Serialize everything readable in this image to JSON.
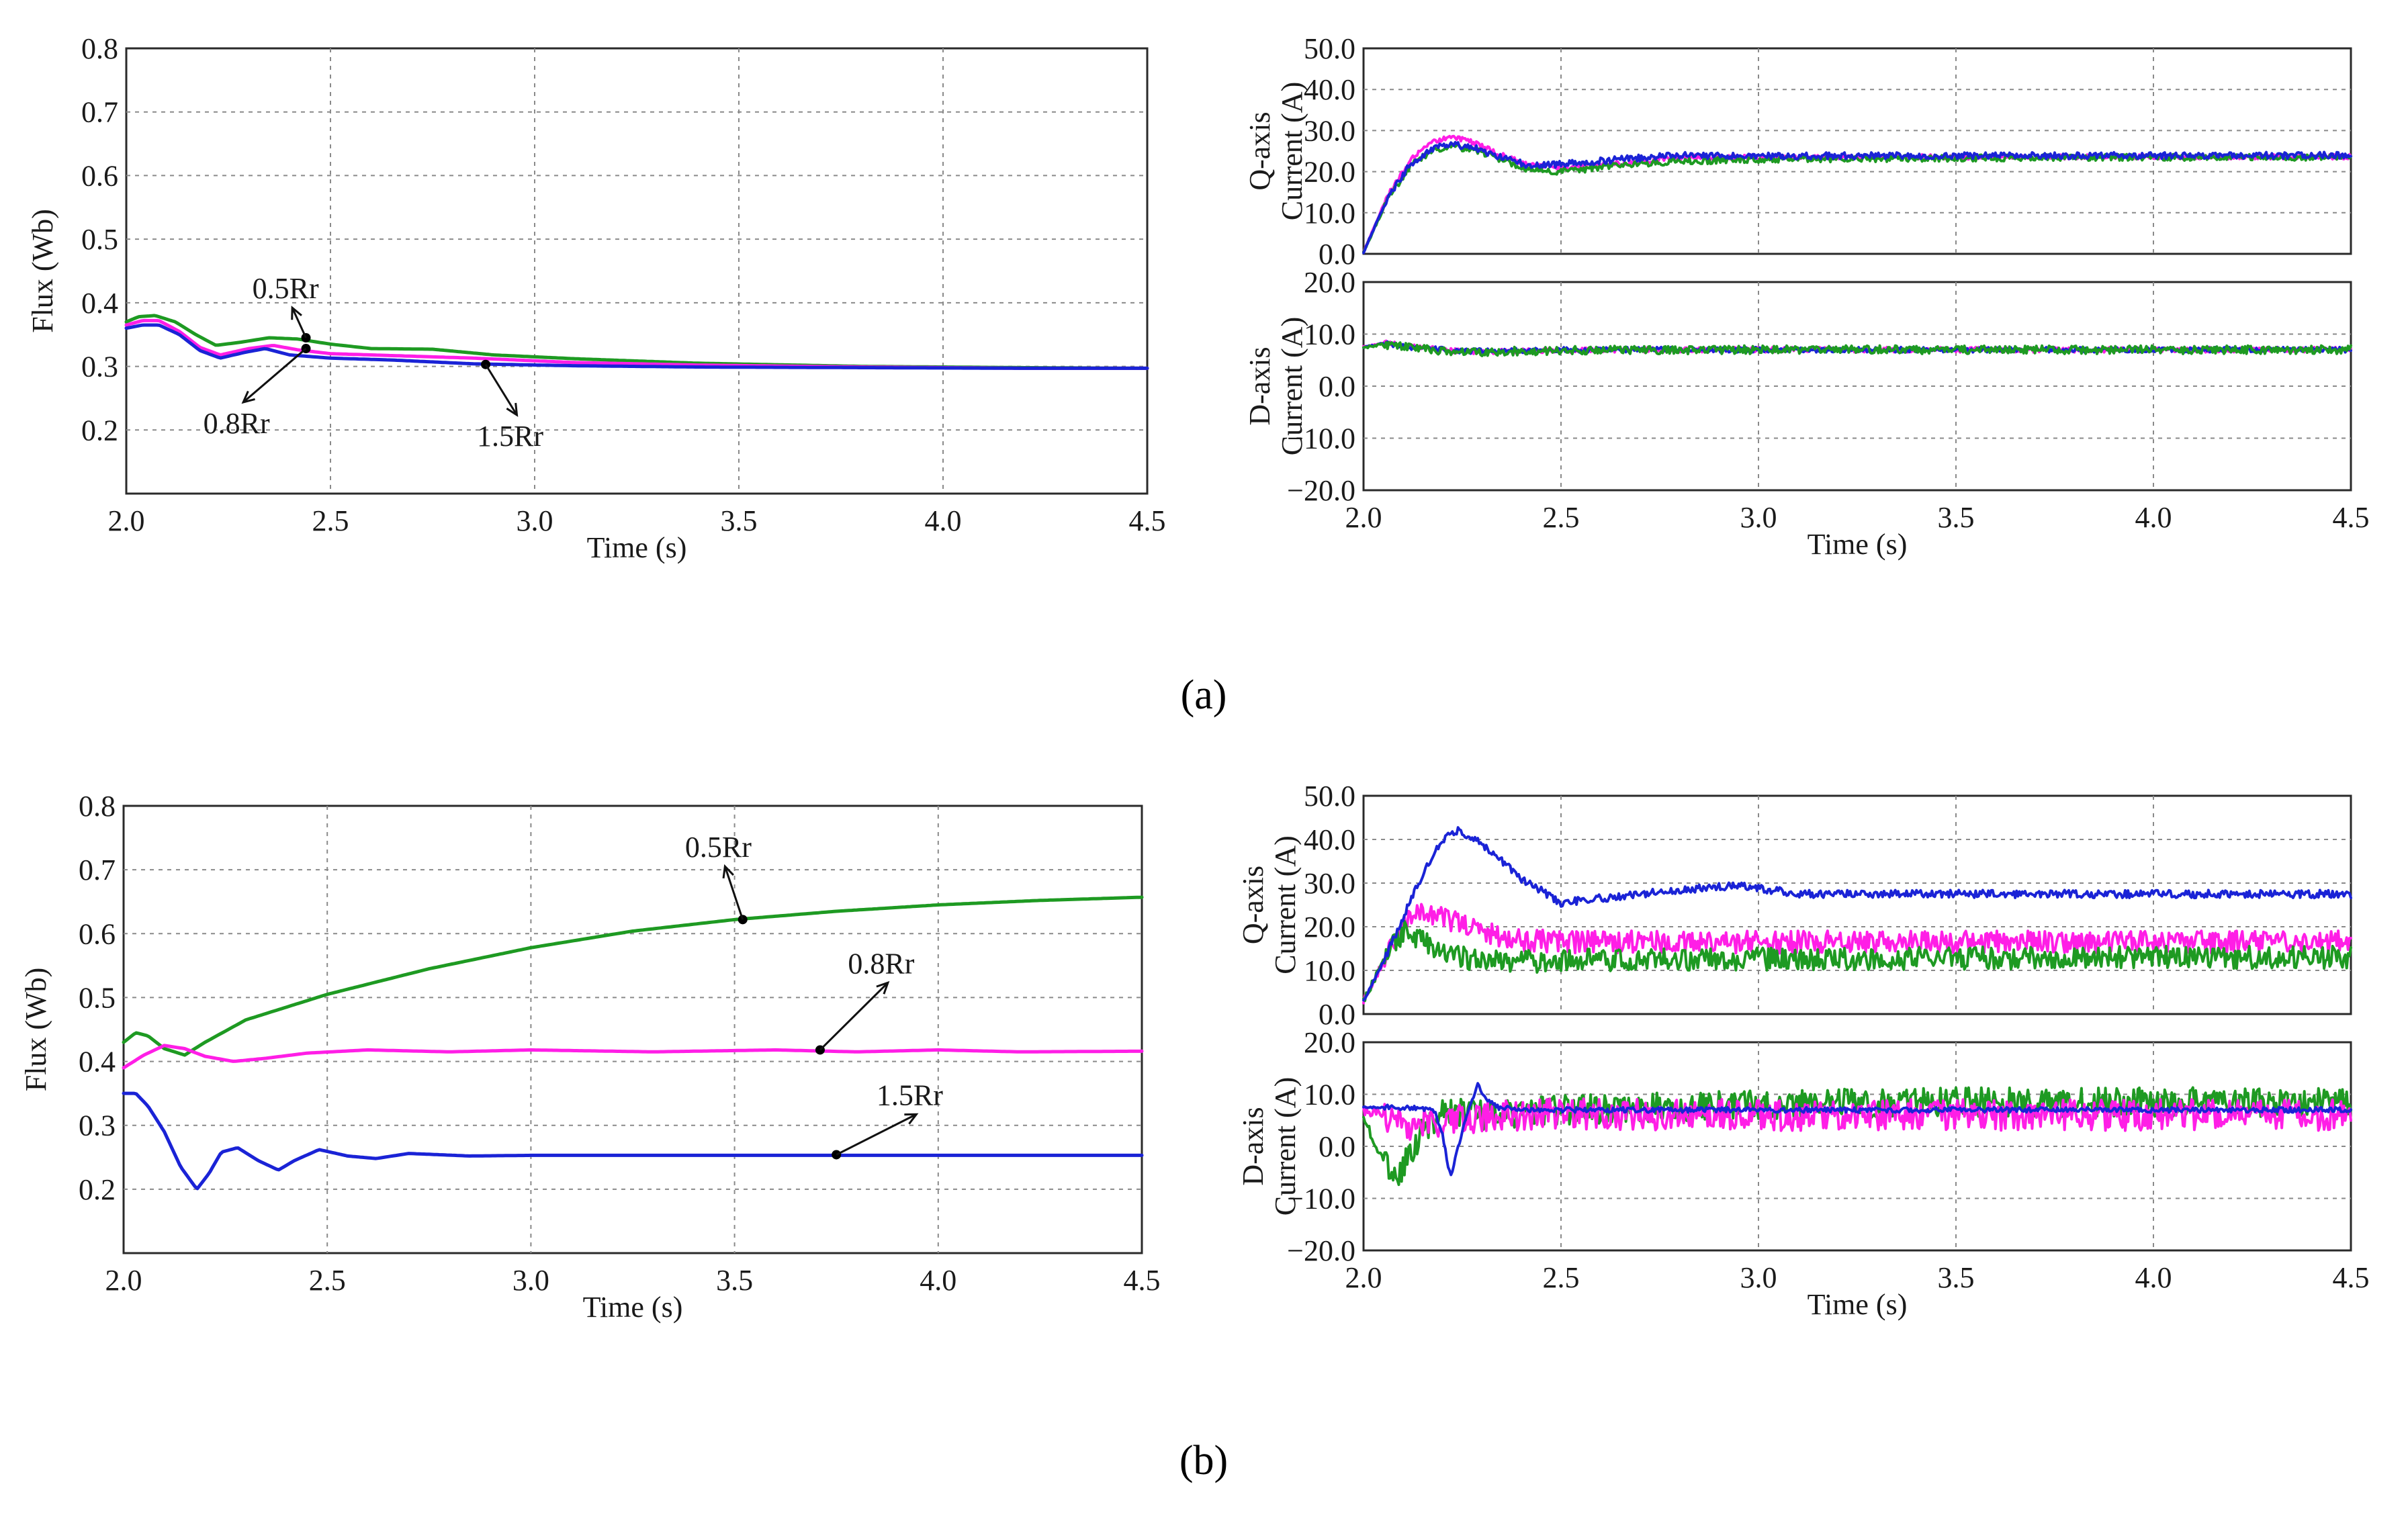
{
  "captions": {
    "a": "(a)",
    "b": "(b)"
  },
  "colors": {
    "green": "#1e9a22",
    "magenta": "#ff1ee6",
    "blue": "#1a23d6"
  },
  "chart_data": [
    {
      "id": "a_flux",
      "type": "line",
      "panel": "(a)",
      "xlabel": "Time (s)",
      "ylabel": "Flux (Wb)",
      "xlim": [
        2.0,
        4.5
      ],
      "ylim": [
        0.1,
        0.8
      ],
      "xticks": [
        "2.0",
        "2.5",
        "3.0",
        "3.5",
        "4.0",
        "4.5"
      ],
      "yticks": [
        "0.2",
        "0.3",
        "0.4",
        "0.5",
        "0.6",
        "0.7",
        "0.8"
      ],
      "grid": true,
      "series": [
        {
          "name": "0.5Rr",
          "color": "green",
          "x": [
            2.0,
            2.03,
            2.07,
            2.12,
            2.17,
            2.22,
            2.28,
            2.35,
            2.42,
            2.5,
            2.6,
            2.75,
            2.9,
            3.1,
            3.4,
            3.8,
            4.2,
            4.5
          ],
          "y": [
            0.37,
            0.378,
            0.38,
            0.37,
            0.35,
            0.333,
            0.338,
            0.345,
            0.343,
            0.335,
            0.328,
            0.327,
            0.318,
            0.312,
            0.305,
            0.3,
            0.298,
            0.297
          ]
        },
        {
          "name": "0.8Rr",
          "color": "magenta",
          "x": [
            2.0,
            2.04,
            2.08,
            2.13,
            2.18,
            2.23,
            2.3,
            2.36,
            2.42,
            2.5,
            2.65,
            2.85,
            3.1,
            3.4,
            3.8,
            4.2,
            4.5
          ],
          "y": [
            0.365,
            0.372,
            0.372,
            0.355,
            0.33,
            0.318,
            0.328,
            0.333,
            0.326,
            0.32,
            0.317,
            0.313,
            0.306,
            0.302,
            0.299,
            0.297,
            0.297
          ]
        },
        {
          "name": "1.5Rr",
          "color": "blue",
          "x": [
            2.0,
            2.04,
            2.08,
            2.13,
            2.18,
            2.23,
            2.29,
            2.34,
            2.4,
            2.5,
            2.65,
            2.85,
            3.1,
            3.4,
            3.8,
            4.2,
            4.5
          ],
          "y": [
            0.36,
            0.365,
            0.365,
            0.35,
            0.325,
            0.313,
            0.322,
            0.328,
            0.318,
            0.313,
            0.31,
            0.304,
            0.301,
            0.299,
            0.298,
            0.297,
            0.297
          ]
        }
      ],
      "annotations": [
        {
          "text": "0.5Rr",
          "point": [
            2.44,
            0.345
          ],
          "label": [
            2.39,
            0.407
          ]
        },
        {
          "text": "0.8Rr",
          "point": [
            2.44,
            0.328
          ],
          "label": [
            2.27,
            0.195
          ]
        },
        {
          "text": "1.5Rr",
          "point": [
            2.88,
            0.303
          ],
          "label": [
            2.94,
            0.175
          ]
        }
      ]
    },
    {
      "id": "a_q",
      "type": "line",
      "panel": "(a)",
      "xlabel": "",
      "ylabel": [
        "Q-axis",
        "Current (A)"
      ],
      "xlim": [
        2.0,
        4.5
      ],
      "ylim": [
        0,
        50
      ],
      "xticks": [],
      "yticks": [
        "0.0",
        "10.0",
        "20.0",
        "30.0",
        "40.0",
        "50.0"
      ],
      "grid": true,
      "series": [
        {
          "name": "0.8Rr",
          "color": "magenta",
          "noise": 0.6,
          "x": [
            2.0,
            2.06,
            2.12,
            2.18,
            2.23,
            2.28,
            2.35,
            2.42,
            2.5,
            2.65,
            2.8,
            3.0,
            3.5,
            4.0,
            4.5
          ],
          "y": [
            0.5,
            14,
            23,
            27.5,
            28.5,
            27,
            24,
            21.5,
            21,
            22,
            23.5,
            23.5,
            23.6,
            23.6,
            23.6
          ]
        },
        {
          "name": "0.5Rr",
          "color": "green",
          "noise": 0.8,
          "x": [
            2.0,
            2.06,
            2.12,
            2.18,
            2.23,
            2.28,
            2.35,
            2.42,
            2.5,
            2.65,
            2.8,
            3.0,
            3.5,
            4.0,
            4.5
          ],
          "y": [
            0.3,
            13,
            21.5,
            25.5,
            26,
            25.2,
            23,
            20.5,
            20,
            21.5,
            22.5,
            23,
            23.3,
            23.5,
            23.5
          ]
        },
        {
          "name": "1.5Rr",
          "color": "blue",
          "noise": 0.8,
          "x": [
            2.0,
            2.06,
            2.12,
            2.18,
            2.23,
            2.28,
            2.35,
            2.42,
            2.5,
            2.65,
            2.8,
            3.0,
            3.5,
            4.0,
            4.5
          ],
          "y": [
            0.4,
            13.5,
            22,
            26,
            26.5,
            25.8,
            23.5,
            21.5,
            21.8,
            23,
            24,
            23.8,
            23.9,
            23.9,
            24
          ]
        }
      ]
    },
    {
      "id": "a_d",
      "type": "line",
      "panel": "(a)",
      "xlabel": "Time (s)",
      "ylabel": [
        "D-axis",
        "Current (A)"
      ],
      "xlim": [
        2.0,
        4.5
      ],
      "ylim": [
        -20,
        20
      ],
      "xticks": [
        "2.0",
        "2.5",
        "3.0",
        "3.5",
        "4.0",
        "4.5"
      ],
      "yticks": [
        "−20.0",
        "−10.0",
        "0.0",
        "10.0",
        "20.0"
      ],
      "grid": true,
      "series": [
        {
          "name": "0.8Rr",
          "color": "magenta",
          "noise": 0.5,
          "x": [
            2.0,
            2.05,
            2.12,
            2.25,
            2.5,
            3.0,
            4.5
          ],
          "y": [
            7.5,
            8.3,
            7.6,
            6.6,
            6.9,
            7.0,
            7.0
          ]
        },
        {
          "name": "1.5Rr",
          "color": "blue",
          "noise": 0.5,
          "x": [
            2.0,
            2.05,
            2.12,
            2.25,
            2.5,
            3.0,
            4.5
          ],
          "y": [
            7.5,
            8.2,
            7.5,
            6.7,
            7.0,
            7.0,
            7.0
          ]
        },
        {
          "name": "0.5Rr",
          "color": "green",
          "noise": 0.8,
          "x": [
            2.0,
            2.05,
            2.12,
            2.25,
            2.5,
            3.0,
            4.5
          ],
          "y": [
            7.4,
            8.0,
            7.4,
            6.5,
            6.9,
            7.0,
            7.0
          ]
        }
      ]
    },
    {
      "id": "b_flux",
      "type": "line",
      "panel": "(b)",
      "xlabel": "Time (s)",
      "ylabel": "Flux (Wb)",
      "xlim": [
        2.0,
        4.5
      ],
      "ylim": [
        0.1,
        0.8
      ],
      "xticks": [
        "2.0",
        "2.5",
        "3.0",
        "3.5",
        "4.0",
        "4.5"
      ],
      "yticks": [
        "0.2",
        "0.3",
        "0.4",
        "0.5",
        "0.6",
        "0.7",
        "0.8"
      ],
      "grid": true,
      "series": [
        {
          "name": "0.5Rr",
          "color": "green",
          "x": [
            2.0,
            2.03,
            2.06,
            2.1,
            2.15,
            2.2,
            2.3,
            2.5,
            2.75,
            3.0,
            3.25,
            3.5,
            3.75,
            4.0,
            4.25,
            4.5
          ],
          "y": [
            0.43,
            0.445,
            0.44,
            0.42,
            0.41,
            0.43,
            0.465,
            0.505,
            0.545,
            0.578,
            0.604,
            0.622,
            0.635,
            0.645,
            0.652,
            0.657
          ]
        },
        {
          "name": "0.8Rr",
          "color": "magenta",
          "x": [
            2.0,
            2.05,
            2.1,
            2.15,
            2.2,
            2.27,
            2.35,
            2.45,
            2.6,
            2.8,
            3.0,
            3.3,
            3.6,
            3.8,
            4.0,
            4.2,
            4.5
          ],
          "y": [
            0.39,
            0.41,
            0.425,
            0.42,
            0.408,
            0.4,
            0.405,
            0.413,
            0.418,
            0.415,
            0.418,
            0.415,
            0.418,
            0.415,
            0.418,
            0.415,
            0.416
          ]
        },
        {
          "name": "1.5Rr",
          "color": "blue",
          "x": [
            2.0,
            2.03,
            2.06,
            2.1,
            2.14,
            2.18,
            2.21,
            2.24,
            2.28,
            2.33,
            2.38,
            2.42,
            2.48,
            2.55,
            2.62,
            2.7,
            2.85,
            3.0,
            3.5,
            4.0,
            4.5
          ],
          "y": [
            0.35,
            0.35,
            0.33,
            0.29,
            0.235,
            0.2,
            0.225,
            0.258,
            0.265,
            0.245,
            0.23,
            0.245,
            0.262,
            0.252,
            0.248,
            0.256,
            0.252,
            0.253,
            0.253,
            0.253,
            0.253
          ]
        }
      ],
      "annotations": [
        {
          "text": "0.5Rr",
          "point": [
            3.52,
            0.622
          ],
          "label": [
            3.46,
            0.72
          ]
        },
        {
          "text": "0.8Rr",
          "point": [
            3.71,
            0.418
          ],
          "label": [
            3.86,
            0.538
          ]
        },
        {
          "text": "1.5Rr",
          "point": [
            3.75,
            0.254
          ],
          "label": [
            3.93,
            0.332
          ]
        }
      ]
    },
    {
      "id": "b_q",
      "type": "line",
      "panel": "(b)",
      "xlabel": "",
      "ylabel": [
        "Q-axis",
        "Current (A)"
      ],
      "xlim": [
        2.0,
        4.5
      ],
      "ylim": [
        0,
        50
      ],
      "xticks": [],
      "yticks": [
        "0.0",
        "10.0",
        "20.0",
        "30.0",
        "40.0",
        "50.0"
      ],
      "grid": true,
      "series": [
        {
          "name": "0.8Rr",
          "color": "magenta",
          "noise": 2.6,
          "x": [
            2.0,
            2.05,
            2.1,
            2.15,
            2.2,
            2.3,
            2.4,
            2.5,
            3.0,
            3.5,
            4.0,
            4.5
          ],
          "y": [
            3,
            12,
            20,
            24,
            22,
            19,
            17,
            16.5,
            16.5,
            16.5,
            16.5,
            16.5
          ]
        },
        {
          "name": "0.5Rr",
          "color": "green",
          "noise": 2.6,
          "x": [
            2.0,
            2.05,
            2.1,
            2.15,
            2.2,
            2.3,
            2.4,
            2.5,
            3.0,
            3.5,
            4.0,
            4.5
          ],
          "y": [
            3,
            12,
            19,
            17,
            14,
            12,
            12,
            12.3,
            12.6,
            12.8,
            13,
            13
          ]
        },
        {
          "name": "1.5Rr",
          "color": "blue",
          "noise": 0.9,
          "x": [
            2.0,
            2.05,
            2.1,
            2.15,
            2.2,
            2.24,
            2.3,
            2.4,
            2.5,
            2.6,
            2.75,
            2.95,
            3.1,
            3.3,
            3.6,
            4.0,
            4.5
          ],
          "y": [
            3,
            12,
            22,
            32,
            40,
            42,
            39,
            31,
            25.5,
            26.5,
            28,
            29.5,
            27.5,
            27.5,
            27.5,
            27.5,
            27.5
          ]
        }
      ]
    },
    {
      "id": "b_d",
      "type": "line",
      "panel": "(b)",
      "xlabel": "Time (s)",
      "ylabel": [
        "D-axis",
        "Current (A)"
      ],
      "xlim": [
        2.0,
        4.5
      ],
      "ylim": [
        -20,
        20
      ],
      "xticks": [
        "2.0",
        "2.5",
        "3.0",
        "3.5",
        "4.0",
        "4.5"
      ],
      "yticks": [
        "−20.0",
        "−10.0",
        "0.0",
        "10.0",
        "20.0"
      ],
      "grid": true,
      "series": [
        {
          "name": "0.5Rr",
          "color": "green",
          "noise": 2.8,
          "x": [
            2.0,
            2.03,
            2.06,
            2.09,
            2.12,
            2.16,
            2.22,
            2.3,
            2.5,
            3.0,
            3.5,
            4.0,
            4.5
          ],
          "y": [
            6,
            0,
            -4,
            -6,
            -1,
            4,
            7,
            6,
            7,
            8,
            8.5,
            8.5,
            8.5
          ]
        },
        {
          "name": "0.8Rr",
          "color": "magenta",
          "noise": 3.0,
          "x": [
            2.0,
            2.05,
            2.1,
            2.2,
            2.35,
            2.5,
            3.0,
            3.5,
            4.0,
            4.5
          ],
          "y": [
            7,
            6,
            4,
            5,
            6,
            6.2,
            6,
            6,
            6,
            6
          ]
        },
        {
          "name": "1.5Rr",
          "color": "blue",
          "noise": 0.5,
          "x": [
            2.0,
            2.1,
            2.18,
            2.2,
            2.22,
            2.24,
            2.26,
            2.28,
            2.29,
            2.31,
            2.34,
            2.4,
            2.6,
            3.0,
            3.5,
            4.0,
            4.5
          ],
          "y": [
            7.5,
            7.5,
            7,
            2,
            -6,
            0,
            6,
            10,
            12,
            9,
            7.5,
            7,
            7,
            7,
            7,
            7,
            7
          ]
        }
      ]
    }
  ]
}
